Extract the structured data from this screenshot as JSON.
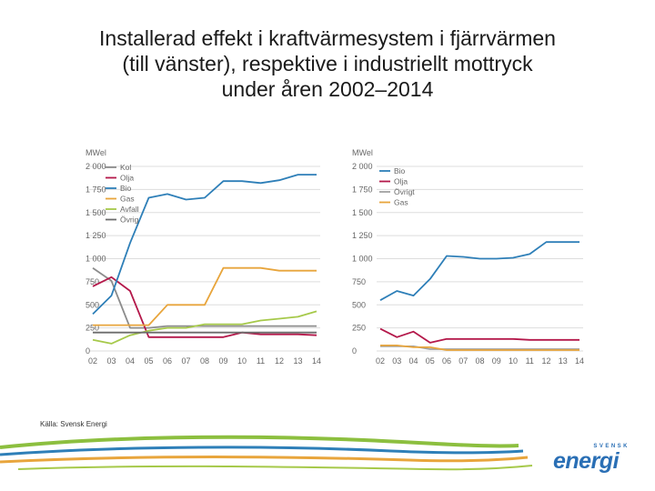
{
  "title_lines": [
    "Installerad effekt i kraftvärmesystem i fjärrvärmen",
    "(till vänster), respektive i industriellt mottryck",
    "under åren 2002–2014"
  ],
  "source": "Källa: Svensk Energi",
  "logo": {
    "top": "SVENSK",
    "main": "energi"
  },
  "colors": {
    "Kol": "#8c8c8c",
    "Olja": "#b4184a",
    "Bio": "#2e7fb8",
    "Gas": "#e8a53c",
    "Avfall": "#a6c94a",
    "Övrigt": "#6c6c6c",
    "Grid": "#dddddd"
  },
  "chart_data": [
    {
      "type": "line",
      "ylabel": "MWel",
      "x": [
        "02",
        "03",
        "04",
        "05",
        "06",
        "07",
        "08",
        "09",
        "10",
        "11",
        "12",
        "13",
        "14"
      ],
      "ylim": [
        0,
        2000
      ],
      "yticks": [
        0,
        250,
        500,
        750,
        1000,
        1250,
        1500,
        1750,
        2000
      ],
      "ytick_labels": [
        "0",
        "250",
        "500",
        "750",
        "1 000",
        "1 250",
        "1 500",
        "1 750",
        "2 000"
      ],
      "legend": [
        "Kol",
        "Olja",
        "Bio",
        "Gas",
        "Avfall",
        "Övrig"
      ],
      "series": [
        {
          "name": "Kol",
          "color": "#8c8c8c",
          "values": [
            900,
            760,
            250,
            250,
            270,
            270,
            270,
            270,
            270,
            270,
            270,
            270,
            270
          ]
        },
        {
          "name": "Olja",
          "color": "#b4184a",
          "values": [
            700,
            800,
            650,
            150,
            150,
            150,
            150,
            150,
            200,
            180,
            180,
            180,
            170
          ]
        },
        {
          "name": "Bio",
          "color": "#2e7fb8",
          "values": [
            400,
            600,
            1170,
            1660,
            1700,
            1640,
            1660,
            1840,
            1840,
            1820,
            1850,
            1910,
            1910
          ]
        },
        {
          "name": "Gas",
          "color": "#e8a53c",
          "values": [
            280,
            280,
            280,
            280,
            500,
            500,
            500,
            900,
            900,
            900,
            870,
            870,
            870
          ]
        },
        {
          "name": "Avfall",
          "color": "#a6c94a",
          "values": [
            120,
            80,
            170,
            220,
            250,
            250,
            290,
            290,
            290,
            330,
            350,
            370,
            430
          ]
        },
        {
          "name": "Övrig",
          "color": "#6c6c6c",
          "values": [
            200,
            200,
            200,
            200,
            200,
            200,
            200,
            200,
            200,
            200,
            200,
            200,
            200
          ]
        }
      ]
    },
    {
      "type": "line",
      "ylabel": "MWel",
      "x": [
        "02",
        "03",
        "04",
        "05",
        "06",
        "07",
        "08",
        "09",
        "10",
        "11",
        "12",
        "13",
        "14"
      ],
      "ylim": [
        0,
        2000
      ],
      "yticks": [
        0,
        250,
        500,
        750,
        1000,
        1250,
        1500,
        1750,
        2000
      ],
      "ytick_labels": [
        "0",
        "250",
        "500",
        "750",
        "1 000",
        "1 250",
        "1 500",
        "1 750",
        "2 000"
      ],
      "legend": [
        "Bio",
        "Olja",
        "Övrigt",
        "Gas"
      ],
      "series": [
        {
          "name": "Bio",
          "color": "#2e7fb8",
          "values": [
            550,
            650,
            600,
            780,
            1030,
            1020,
            1000,
            1000,
            1010,
            1050,
            1180,
            1180,
            1180
          ]
        },
        {
          "name": "Olja",
          "color": "#b4184a",
          "values": [
            240,
            150,
            210,
            90,
            130,
            130,
            130,
            130,
            130,
            120,
            120,
            120,
            120
          ]
        },
        {
          "name": "Övrigt",
          "color": "#a0a0a0",
          "values": [
            50,
            50,
            50,
            20,
            20,
            20,
            20,
            20,
            20,
            20,
            20,
            20,
            20
          ]
        },
        {
          "name": "Gas",
          "color": "#e8a53c",
          "values": [
            60,
            60,
            40,
            40,
            10,
            10,
            10,
            10,
            10,
            10,
            10,
            10,
            10
          ]
        }
      ]
    }
  ]
}
